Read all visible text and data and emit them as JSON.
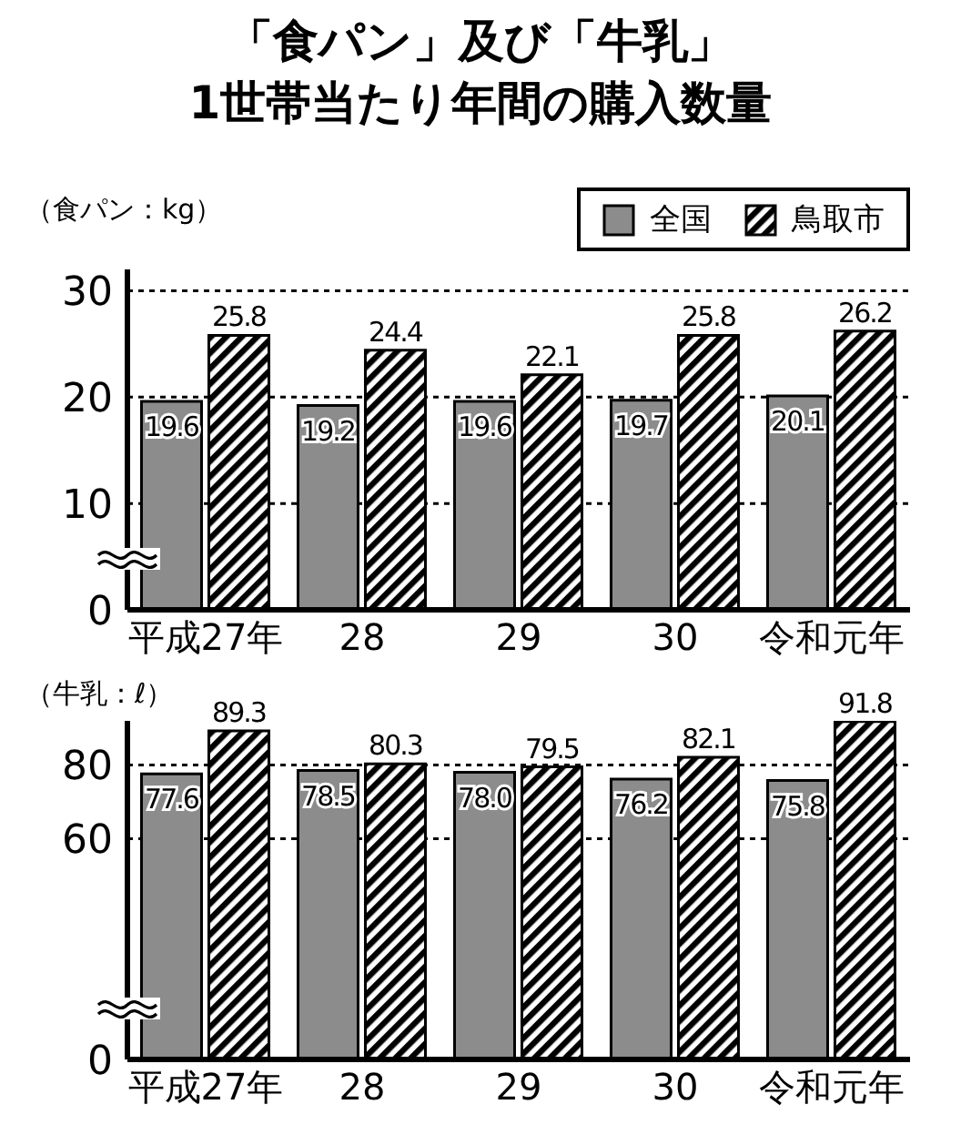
{
  "chart_data": [
    {
      "type": "bar",
      "title": "「食パン」及び「牛乳」\n1世帯当たり年間の購入数量",
      "ylabel": "（食パン：kg）",
      "categories": [
        "平成27年",
        "28",
        "29",
        "30",
        "令和元年"
      ],
      "series": [
        {
          "name": "全国",
          "color": "#8c8c8c",
          "values": [
            19.6,
            19.2,
            19.6,
            19.7,
            20.1
          ],
          "value_labels": [
            "19.6",
            "19.2",
            "19.6",
            "19.7",
            "20.1"
          ]
        },
        {
          "name": "鳥取市",
          "color": "#000000",
          "values": [
            25.8,
            24.4,
            22.1,
            25.8,
            26.2
          ],
          "value_labels": [
            "25.8",
            "24.4",
            "22.1",
            "25.8",
            "26.2"
          ]
        }
      ],
      "ylim": [
        0,
        32
      ],
      "yticks": [
        0,
        10,
        20,
        30
      ],
      "grid": "y",
      "legend": "top right"
    },
    {
      "type": "bar",
      "ylabel": "（牛乳：ℓ）",
      "categories": [
        "平成27年",
        "28",
        "29",
        "30",
        "令和元年"
      ],
      "series": [
        {
          "color": "#8c8c8c",
          "values": [
            77.6,
            78.5,
            78.0,
            76.2,
            75.8
          ],
          "value_labels": [
            "77.6",
            "78.5",
            "78.0",
            "76.2",
            "75.8"
          ]
        },
        {
          "color": "#000000",
          "values": [
            89.3,
            80.3,
            79.5,
            82.1,
            91.8
          ],
          "value_labels": [
            "89.3",
            "80.3",
            "79.5",
            "82.1",
            "91.8"
          ]
        }
      ],
      "ylim": [
        0,
        92
      ],
      "yticks": [
        0,
        60,
        80
      ],
      "grid": "y"
    }
  ]
}
